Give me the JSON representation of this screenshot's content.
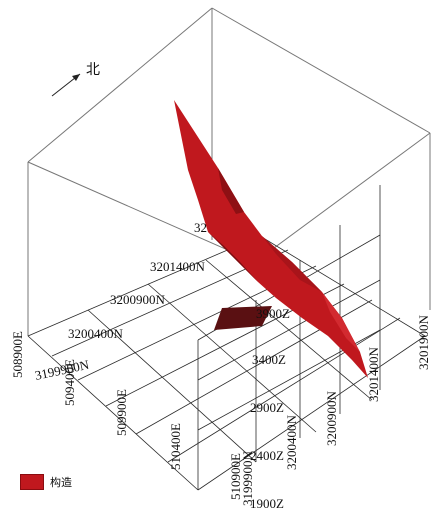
{
  "north_label": "北",
  "legend": {
    "label": "构造",
    "color": "#c0181e"
  },
  "colors": {
    "structure": "#c0181e",
    "structure_dark": "#7a0d10",
    "lens": "#5a1012",
    "grid": "#2a2a2a",
    "box": "#777777"
  },
  "axis_labels": {
    "northing_left": [
      "3201400N",
      "3200900N",
      "3200400N",
      "3199900N",
      "32"
    ],
    "easting_front": [
      "508900E",
      "509400E",
      "509900E",
      "510400E",
      "510900E"
    ],
    "elevation": [
      "3900Z",
      "3400Z",
      "2900Z",
      "2400Z",
      "1900Z"
    ],
    "right_lower": [
      "3199900N",
      "3200400N",
      "3200900N",
      "3201400N",
      "3201900N"
    ]
  }
}
